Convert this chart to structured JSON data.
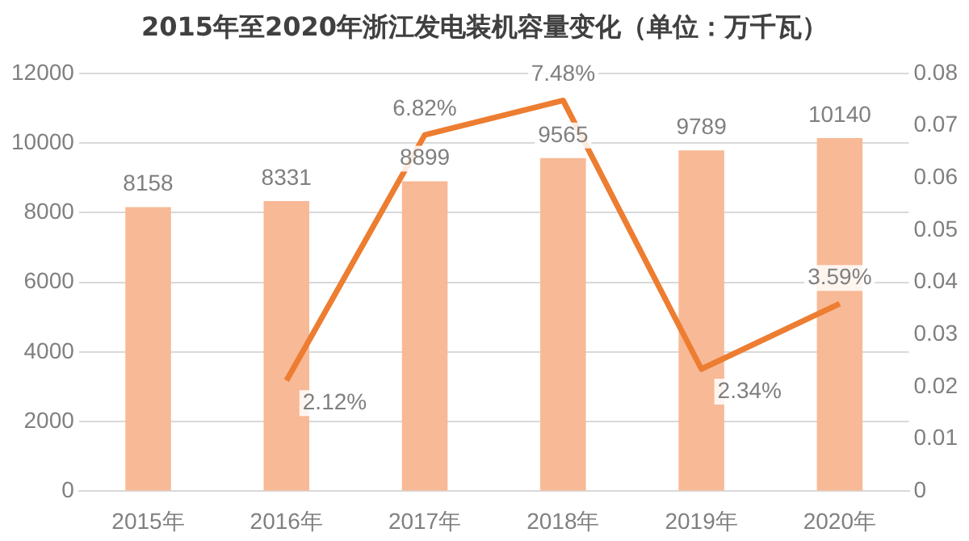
{
  "chart_data": {
    "type": "bar",
    "title": "2015年至2020年浙江发电装机容量变化（单位：万千瓦）",
    "categories": [
      "2015年",
      "2016年",
      "2017年",
      "2018年",
      "2019年",
      "2020年"
    ],
    "series": [
      {
        "color": "#f8b996",
        "values": [
          8158,
          8331,
          8899,
          9565,
          9789,
          10140
        ],
        "value_labels": [
          "8158",
          "8331",
          "8899",
          "9565",
          "9789",
          "10140"
        ]
      },
      {
        "type": "line",
        "axis": "y2",
        "color": "#ed7d31",
        "values": [
          null,
          0.0212,
          0.0682,
          0.0748,
          0.0234,
          0.0359
        ],
        "value_labels": [
          null,
          "2.12%",
          "6.82%",
          "7.48%",
          "2.34%",
          "3.59%"
        ]
      }
    ],
    "ylim": [
      0,
      12000
    ],
    "yticks": [
      0,
      2000,
      4000,
      6000,
      8000,
      10000,
      12000
    ],
    "y2lim": [
      0,
      0.08
    ],
    "y2ticks": [
      0,
      0.01,
      0.02,
      0.03,
      0.04,
      0.05,
      0.06,
      0.07,
      0.08
    ],
    "grid": "y",
    "legend": false,
    "marker": "none",
    "line_style": "solid"
  }
}
